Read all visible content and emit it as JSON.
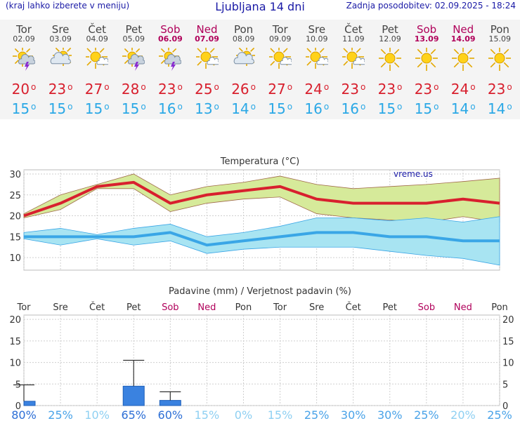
{
  "header": {
    "menu_hint": "(kraj lahko izberete v meniju)",
    "title": "Ljubljana 14 dni",
    "updated": "Zadnja posodobitev: 02.09.2025 - 18:24"
  },
  "days": [
    {
      "name": "Tor",
      "date": "02.09",
      "icon": "sun-cloud-lightning-icon",
      "max": "20",
      "min": "15",
      "weekend": false
    },
    {
      "name": "Sre",
      "date": "03.09",
      "icon": "sun-behind-cloud-icon",
      "max": "23",
      "min": "15",
      "weekend": false
    },
    {
      "name": "Čet",
      "date": "04.09",
      "icon": "sun-small-cloud-icon",
      "max": "27",
      "min": "15",
      "weekend": false
    },
    {
      "name": "Pet",
      "date": "05.09",
      "icon": "sun-cloud-lightning-icon",
      "max": "28",
      "min": "15",
      "weekend": false
    },
    {
      "name": "Sob",
      "date": "06.09",
      "icon": "sun-cloud-lightning-icon",
      "max": "23",
      "min": "16",
      "weekend": true
    },
    {
      "name": "Ned",
      "date": "07.09",
      "icon": "sun-small-cloud-icon",
      "max": "25",
      "min": "13",
      "weekend": true
    },
    {
      "name": "Pon",
      "date": "08.09",
      "icon": "sun-behind-cloud-icon",
      "max": "26",
      "min": "14",
      "weekend": false
    },
    {
      "name": "Tor",
      "date": "09.09",
      "icon": "sun-small-cloud-icon",
      "max": "27",
      "min": "15",
      "weekend": false
    },
    {
      "name": "Sre",
      "date": "10.09",
      "icon": "sun-small-cloud-icon",
      "max": "24",
      "min": "16",
      "weekend": false
    },
    {
      "name": "Čet",
      "date": "11.09",
      "icon": "sun-small-cloud-icon",
      "max": "23",
      "min": "16",
      "weekend": false
    },
    {
      "name": "Pet",
      "date": "12.09",
      "icon": "sun-icon",
      "max": "23",
      "min": "15",
      "weekend": false
    },
    {
      "name": "Sob",
      "date": "13.09",
      "icon": "sun-icon",
      "max": "23",
      "min": "15",
      "weekend": true
    },
    {
      "name": "Ned",
      "date": "14.09",
      "icon": "sun-icon",
      "max": "24",
      "min": "14",
      "weekend": true
    },
    {
      "name": "Pon",
      "date": "15.09",
      "icon": "sun-icon",
      "max": "23",
      "min": "14",
      "weekend": false
    }
  ],
  "colors": {
    "max": "#d8202e",
    "min": "#2aa8e6",
    "weekend": "#b0005a",
    "max_band": "#d6ea9a",
    "min_band": "#a8e4f2",
    "min_line": "#3aa6e6",
    "bar": "#3a82e0",
    "grid": "#cfcfcf"
  },
  "chart_data": [
    {
      "type": "line",
      "title": "Temperatura (°C)",
      "watermark": "vreme.us",
      "ylim": [
        7,
        31
      ],
      "yticks": [
        "10",
        "15",
        "20",
        "25",
        "30"
      ],
      "ytick_values": [
        10,
        15,
        20,
        25,
        30
      ],
      "series": [
        {
          "name": "max",
          "values": [
            20,
            23,
            27,
            28,
            23,
            25,
            26,
            27,
            24,
            23,
            23,
            23,
            24,
            23
          ]
        },
        {
          "name": "max_high",
          "values": [
            20.5,
            25,
            27.5,
            30,
            25,
            27,
            28,
            29.5,
            27.5,
            26.5,
            27,
            27.5,
            28.2,
            29
          ]
        },
        {
          "name": "max_low",
          "values": [
            19.5,
            21.5,
            26.5,
            26.5,
            21,
            23,
            24,
            24.5,
            20.5,
            19.5,
            19,
            18.5,
            19.8,
            18.5
          ]
        },
        {
          "name": "min",
          "values": [
            15,
            15,
            15,
            15,
            16,
            13,
            14,
            15,
            16,
            16,
            15,
            15,
            14,
            14
          ]
        },
        {
          "name": "min_high",
          "values": [
            16,
            17,
            15.5,
            17,
            18,
            15,
            16,
            17.5,
            19.5,
            19.5,
            18.8,
            19.5,
            18.5,
            19.8
          ]
        },
        {
          "name": "min_low",
          "values": [
            14.5,
            13,
            14.5,
            13,
            14,
            11,
            12,
            12.5,
            12.5,
            12.5,
            11.5,
            10.5,
            9.8,
            8.2
          ]
        }
      ]
    },
    {
      "type": "bar",
      "title": "Padavine (mm) / Verjetnost padavin (%)",
      "categories": [
        "Tor",
        "Sre",
        "Čet",
        "Pet",
        "Sob",
        "Ned",
        "Pon",
        "Tor",
        "Sre",
        "Čet",
        "Pet",
        "Sob",
        "Ned",
        "Pon"
      ],
      "ylim": [
        0,
        21
      ],
      "yticks": [
        "0",
        "5",
        "10",
        "15",
        "20"
      ],
      "ytick_values": [
        0,
        5,
        10,
        15,
        20
      ],
      "values": [
        1,
        0,
        0,
        4.5,
        1.2,
        0,
        0,
        0,
        0,
        0,
        0,
        0,
        0,
        0
      ],
      "error_max": [
        4.8,
        0,
        0,
        10.5,
        3.2,
        0,
        0,
        0,
        0,
        0,
        0,
        0,
        0,
        0
      ],
      "probability": [
        "80%",
        "25%",
        "10%",
        "65%",
        "60%",
        "15%",
        "0%",
        "15%",
        "25%",
        "30%",
        "30%",
        "25%",
        "20%",
        "25%"
      ],
      "probability_colors": [
        "#2d6fd6",
        "#4aa3e8",
        "#8fd0f2",
        "#2d6fd6",
        "#2d6fd6",
        "#8fd0f2",
        "#8fd0f2",
        "#8fd0f2",
        "#4aa3e8",
        "#4aa3e8",
        "#4aa3e8",
        "#4aa3e8",
        "#8fd0f2",
        "#4aa3e8"
      ]
    }
  ]
}
